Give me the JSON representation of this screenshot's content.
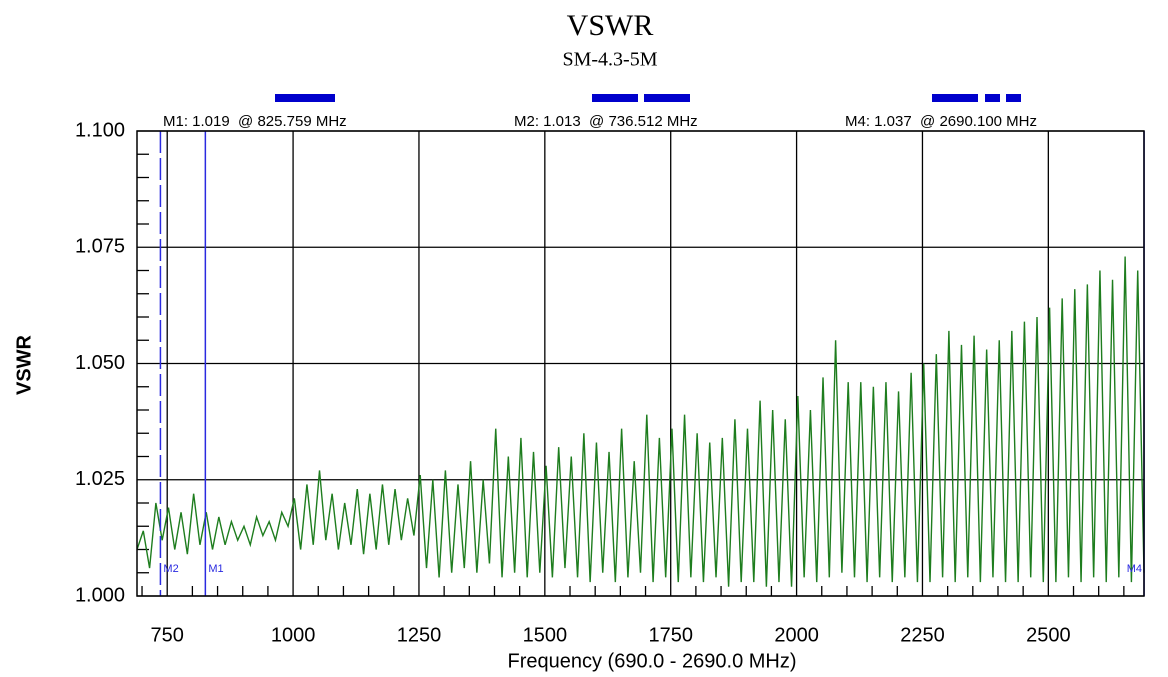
{
  "chart_data": {
    "type": "line",
    "title": "VSWR",
    "subtitle": "SM-4.3-5M",
    "x_label": "Frequency (690.0 - 2690.0 MHz)",
    "y_label": "VSWR",
    "xlim": [
      690,
      2690
    ],
    "ylim": [
      1,
      1.1
    ],
    "xticks": [
      750,
      1000,
      1250,
      1500,
      1750,
      2000,
      2250,
      2500
    ],
    "yticks": [
      {
        "value": 1,
        "label": "1.000"
      },
      {
        "value": 1.025,
        "label": "1.025"
      },
      {
        "value": 1.05,
        "label": "1.050"
      },
      {
        "value": 1.075,
        "label": "1.075"
      },
      {
        "value": 1.1,
        "label": "1.100"
      }
    ],
    "minor_xticks": [
      700,
      800,
      850,
      900,
      950,
      1050,
      1100,
      1150,
      1200,
      1300,
      1350,
      1400,
      1450,
      1550,
      1600,
      1650,
      1700,
      1800,
      1850,
      1900,
      1950,
      2050,
      2100,
      2150,
      2200,
      2300,
      2350,
      2400,
      2450,
      2550,
      2600,
      2650
    ],
    "minor_yticks": [
      1.005,
      1.01,
      1.015,
      1.02,
      1.03,
      1.035,
      1.04,
      1.045,
      1.055,
      1.06,
      1.065,
      1.07,
      1.08,
      1.085,
      1.09,
      1.095
    ],
    "grid": true,
    "x": [
      690,
      702.5,
      715,
      727.5,
      740,
      752.5,
      765,
      777.5,
      790,
      802.5,
      815,
      827.5,
      840,
      852.5,
      865,
      877.5,
      890,
      902.5,
      915,
      927.5,
      940,
      952.5,
      965,
      977.5,
      990,
      1002.5,
      1015,
      1027.5,
      1040,
      1052.5,
      1065,
      1077.5,
      1090,
      1102.5,
      1115,
      1127.5,
      1140,
      1152.5,
      1165,
      1177.5,
      1190,
      1202.5,
      1215,
      1227.5,
      1240,
      1252.5,
      1265,
      1277.5,
      1290,
      1302.5,
      1315,
      1327.5,
      1340,
      1352.5,
      1365,
      1377.5,
      1390,
      1402.5,
      1415,
      1427.5,
      1440,
      1452.5,
      1465,
      1477.5,
      1490,
      1502.5,
      1515,
      1527.5,
      1540,
      1552.5,
      1565,
      1577.5,
      1590,
      1602.5,
      1615,
      1627.5,
      1640,
      1652.5,
      1665,
      1677.5,
      1690,
      1702.5,
      1715,
      1727.5,
      1740,
      1752.5,
      1765,
      1777.5,
      1790,
      1802.5,
      1815,
      1827.5,
      1840,
      1852.5,
      1865,
      1877.5,
      1890,
      1902.5,
      1915,
      1927.5,
      1940,
      1952.5,
      1965,
      1977.5,
      1990,
      2002.5,
      2015,
      2027.5,
      2040,
      2052.5,
      2065,
      2077.5,
      2090,
      2102.5,
      2115,
      2127.5,
      2140,
      2152.5,
      2165,
      2177.5,
      2190,
      2202.5,
      2215,
      2227.5,
      2240,
      2252.5,
      2265,
      2277.5,
      2290,
      2302.5,
      2315,
      2327.5,
      2340,
      2352.5,
      2365,
      2377.5,
      2390,
      2402.5,
      2415,
      2427.5,
      2440,
      2452.5,
      2465,
      2477.5,
      2490,
      2502.5,
      2515,
      2527.5,
      2540,
      2552.5,
      2565,
      2577.5,
      2590,
      2602.5,
      2615,
      2627.5,
      2640,
      2652.5,
      2665,
      2677.5,
      2690
    ],
    "series": [
      {
        "color": "#1e7d1e",
        "values": [
          1.01,
          1.014,
          1.006,
          1.02,
          1.012,
          1.019,
          1.01,
          1.018,
          1.009,
          1.022,
          1.011,
          1.018,
          1.01,
          1.017,
          1.011,
          1.016,
          1.012,
          1.015,
          1.011,
          1.017,
          1.013,
          1.016,
          1.012,
          1.018,
          1.015,
          1.021,
          1.01,
          1.024,
          1.011,
          1.027,
          1.012,
          1.022,
          1.01,
          1.02,
          1.011,
          1.023,
          1.009,
          1.022,
          1.01,
          1.024,
          1.011,
          1.023,
          1.012,
          1.021,
          1.013,
          1.026,
          1.006,
          1.025,
          1.004,
          1.027,
          1.005,
          1.024,
          1.006,
          1.029,
          1.005,
          1.025,
          1.007,
          1.036,
          1.004,
          1.03,
          1.005,
          1.034,
          1.004,
          1.031,
          1.005,
          1.028,
          1.004,
          1.032,
          1.006,
          1.03,
          1.004,
          1.035,
          1.003,
          1.033,
          1.005,
          1.031,
          1.003,
          1.036,
          1.004,
          1.029,
          1.005,
          1.039,
          1.003,
          1.034,
          1.004,
          1.036,
          1.003,
          1.039,
          1.004,
          1.035,
          1.003,
          1.033,
          1.004,
          1.034,
          1.002,
          1.038,
          1.003,
          1.036,
          1.003,
          1.042,
          1.002,
          1.04,
          1.003,
          1.038,
          1.002,
          1.043,
          1.004,
          1.04,
          1.003,
          1.047,
          1.004,
          1.055,
          1.005,
          1.046,
          1.004,
          1.046,
          1.003,
          1.045,
          1.004,
          1.046,
          1.003,
          1.044,
          1.004,
          1.048,
          1.003,
          1.05,
          1.003,
          1.052,
          1.004,
          1.057,
          1.003,
          1.054,
          1.004,
          1.056,
          1.003,
          1.053,
          1.004,
          1.055,
          1.003,
          1.057,
          1.003,
          1.059,
          1.004,
          1.06,
          1.003,
          1.062,
          1.003,
          1.064,
          1.004,
          1.066,
          1.003,
          1.067,
          1.004,
          1.07,
          1.003,
          1.068,
          1.004,
          1.073,
          1.003,
          1.07,
          1.005
        ]
      }
    ],
    "markers": [
      {
        "name": "M1",
        "label": "M1: 1.019  @ 825.759 MHz",
        "x": 825.759,
        "value": 1.019,
        "line_style": "solid",
        "color": "#2a2ae0"
      },
      {
        "name": "M2",
        "label": "M2: 1.013  @ 736.512 MHz",
        "x": 736.512,
        "value": 1.013,
        "line_style": "dashed",
        "color": "#2a2ae0"
      },
      {
        "name": "M4",
        "label": "M4: 1.037  @ 2690.100 MHz",
        "x": 2690.1,
        "value": 1.037,
        "line_style": "solid",
        "color": "#2a2ae0"
      }
    ]
  }
}
